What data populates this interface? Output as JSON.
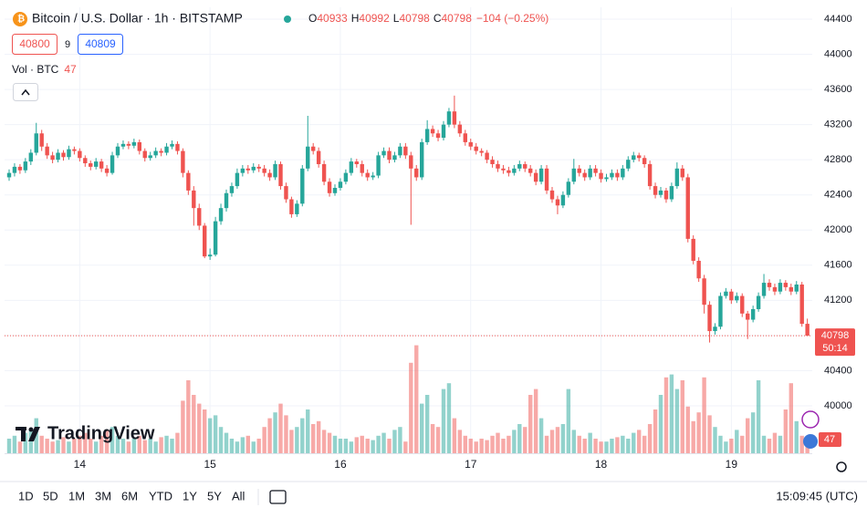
{
  "header": {
    "symbol": "Bitcoin / U.S. Dollar · 1h · BITSTAMP",
    "ohlc_labels": [
      "O",
      "H",
      "L",
      "C"
    ],
    "change": "−104 (−0.25%)",
    "bid": 40800,
    "spread": 9,
    "ask": 40809,
    "volume_label": "Vol · BTC",
    "countdown": "50:14",
    "logo": "TradingView"
  },
  "toolbar": {
    "ranges": [
      "1D",
      "5D",
      "1M",
      "3M",
      "6M",
      "YTD",
      "1Y",
      "5Y",
      "All"
    ],
    "clock": "15:09:45 (UTC)"
  },
  "chart_data": {
    "type": "candlestick",
    "up_color": "#26a69a",
    "down_color": "#ef5350",
    "grid": true,
    "ylim": [
      39460,
      44535
    ],
    "yticks": [
      40000,
      40400,
      40800,
      41200,
      41600,
      42000,
      42400,
      42800,
      43200,
      43600,
      44000,
      44400
    ],
    "xticks": [
      {
        "value": 13,
        "label": "14"
      },
      {
        "value": 37,
        "label": "15"
      },
      {
        "value": 61,
        "label": "16"
      },
      {
        "value": 85,
        "label": "17"
      },
      {
        "value": 109,
        "label": "18"
      },
      {
        "value": 133,
        "label": "19"
      }
    ],
    "volume_lim": [
      0,
      500
    ],
    "candles": [
      [
        42600,
        42690,
        42560,
        42650
      ],
      [
        42650,
        42760,
        42610,
        42720
      ],
      [
        42720,
        42750,
        42640,
        42680
      ],
      [
        42680,
        42820,
        42650,
        42780
      ],
      [
        42780,
        42920,
        42740,
        42880
      ],
      [
        42880,
        43220,
        42850,
        43100
      ],
      [
        43100,
        43140,
        42900,
        42950
      ],
      [
        42950,
        42990,
        42810,
        42850
      ],
      [
        42850,
        42890,
        42760,
        42800
      ],
      [
        42800,
        42920,
        42770,
        42880
      ],
      [
        42880,
        42910,
        42790,
        42830
      ],
      [
        42830,
        42960,
        42800,
        42920
      ],
      [
        42920,
        42950,
        42860,
        42900
      ],
      [
        42900,
        42930,
        42780,
        42820
      ],
      [
        42820,
        42850,
        42720,
        42760
      ],
      [
        42760,
        42790,
        42680,
        42720
      ],
      [
        42720,
        42820,
        42690,
        42780
      ],
      [
        42780,
        42810,
        42660,
        42700
      ],
      [
        42700,
        42740,
        42610,
        42650
      ],
      [
        42650,
        42890,
        42630,
        42850
      ],
      [
        42850,
        42990,
        42820,
        42950
      ],
      [
        42950,
        43020,
        42920,
        42980
      ],
      [
        42980,
        43010,
        42920,
        42960
      ],
      [
        42960,
        43040,
        42930,
        43000
      ],
      [
        43000,
        43030,
        42860,
        42900
      ],
      [
        42900,
        42930,
        42780,
        42820
      ],
      [
        42820,
        42890,
        42790,
        42850
      ],
      [
        42850,
        42940,
        42820,
        42900
      ],
      [
        42900,
        42930,
        42840,
        42880
      ],
      [
        42880,
        42990,
        42850,
        42950
      ],
      [
        42950,
        43020,
        42920,
        42980
      ],
      [
        42980,
        43010,
        42860,
        42900
      ],
      [
        42900,
        42930,
        42600,
        42650
      ],
      [
        42650,
        42680,
        42400,
        42450
      ],
      [
        42450,
        42500,
        42050,
        42250
      ],
      [
        42250,
        42300,
        42000,
        42050
      ],
      [
        42050,
        42080,
        41680,
        41700
      ],
      [
        41700,
        41790,
        41660,
        41720
      ],
      [
        41720,
        42150,
        41700,
        42100
      ],
      [
        42100,
        42300,
        42060,
        42250
      ],
      [
        42250,
        42460,
        42210,
        42420
      ],
      [
        42420,
        42540,
        42380,
        42500
      ],
      [
        42500,
        42700,
        42470,
        42650
      ],
      [
        42650,
        42740,
        42610,
        42700
      ],
      [
        42700,
        42740,
        42640,
        42680
      ],
      [
        42680,
        42760,
        42650,
        42720
      ],
      [
        42720,
        42750,
        42660,
        42700
      ],
      [
        42700,
        42740,
        42610,
        42650
      ],
      [
        42650,
        42690,
        42560,
        42600
      ],
      [
        42600,
        42790,
        42570,
        42750
      ],
      [
        42750,
        42780,
        42460,
        42500
      ],
      [
        42500,
        42540,
        42310,
        42350
      ],
      [
        42350,
        42380,
        42140,
        42180
      ],
      [
        42180,
        42340,
        42150,
        42300
      ],
      [
        42300,
        42740,
        42270,
        42700
      ],
      [
        42700,
        43300,
        42670,
        42950
      ],
      [
        42950,
        42990,
        42860,
        42900
      ],
      [
        42900,
        42940,
        42710,
        42750
      ],
      [
        42750,
        42790,
        42510,
        42550
      ],
      [
        42550,
        42590,
        42380,
        42420
      ],
      [
        42420,
        42520,
        42390,
        42480
      ],
      [
        42480,
        42590,
        42450,
        42550
      ],
      [
        42550,
        42690,
        42520,
        42650
      ],
      [
        42650,
        42820,
        42620,
        42780
      ],
      [
        42780,
        42810,
        42710,
        42750
      ],
      [
        42750,
        42790,
        42610,
        42650
      ],
      [
        42650,
        42690,
        42560,
        42600
      ],
      [
        42600,
        42660,
        42570,
        42620
      ],
      [
        42620,
        42890,
        42590,
        42850
      ],
      [
        42850,
        42940,
        42820,
        42900
      ],
      [
        42900,
        42940,
        42760,
        42800
      ],
      [
        42800,
        42890,
        42770,
        42850
      ],
      [
        42850,
        42990,
        42820,
        42950
      ],
      [
        42950,
        42990,
        42810,
        42850
      ],
      [
        42850,
        42890,
        42060,
        42700
      ],
      [
        42700,
        42740,
        42560,
        42600
      ],
      [
        42600,
        43040,
        42570,
        43000
      ],
      [
        43000,
        43250,
        42970,
        43150
      ],
      [
        43150,
        43190,
        43060,
        43100
      ],
      [
        43100,
        43140,
        43010,
        43050
      ],
      [
        43050,
        43240,
        43020,
        43200
      ],
      [
        43200,
        43390,
        43170,
        43350
      ],
      [
        43350,
        43530,
        43160,
        43200
      ],
      [
        43200,
        43240,
        43060,
        43100
      ],
      [
        43100,
        43140,
        42960,
        43000
      ],
      [
        43000,
        43040,
        42910,
        42950
      ],
      [
        42950,
        42990,
        42860,
        42900
      ],
      [
        42900,
        42930,
        42840,
        42880
      ],
      [
        42880,
        42910,
        42760,
        42800
      ],
      [
        42800,
        42840,
        42710,
        42750
      ],
      [
        42750,
        42790,
        42660,
        42700
      ],
      [
        42700,
        42740,
        42640,
        42680
      ],
      [
        42680,
        42720,
        42610,
        42650
      ],
      [
        42650,
        42740,
        42620,
        42700
      ],
      [
        42700,
        42790,
        42670,
        42750
      ],
      [
        42750,
        42780,
        42660,
        42700
      ],
      [
        42700,
        42740,
        42610,
        42650
      ],
      [
        42650,
        42690,
        42510,
        42550
      ],
      [
        42550,
        42740,
        42520,
        42700
      ],
      [
        42700,
        42740,
        42410,
        42450
      ],
      [
        42450,
        42490,
        42310,
        42350
      ],
      [
        42350,
        42390,
        42180,
        42280
      ],
      [
        42280,
        42440,
        42250,
        42400
      ],
      [
        42400,
        42590,
        42370,
        42550
      ],
      [
        42550,
        42810,
        42520,
        42700
      ],
      [
        42700,
        42740,
        42610,
        42650
      ],
      [
        42650,
        42690,
        42560,
        42600
      ],
      [
        42600,
        42740,
        42570,
        42700
      ],
      [
        42700,
        42740,
        42610,
        42650
      ],
      [
        42650,
        42690,
        42540,
        42580
      ],
      [
        42580,
        42640,
        42550,
        42600
      ],
      [
        42600,
        42690,
        42570,
        42650
      ],
      [
        42650,
        42690,
        42560,
        42600
      ],
      [
        42600,
        42740,
        42570,
        42700
      ],
      [
        42700,
        42840,
        42670,
        42800
      ],
      [
        42800,
        42890,
        42770,
        42850
      ],
      [
        42850,
        42880,
        42780,
        42820
      ],
      [
        42820,
        42850,
        42710,
        42750
      ],
      [
        42750,
        42790,
        42460,
        42500
      ],
      [
        42500,
        42540,
        42360,
        42400
      ],
      [
        42400,
        42490,
        42370,
        42450
      ],
      [
        42450,
        42480,
        42310,
        42350
      ],
      [
        42350,
        42540,
        42320,
        42500
      ],
      [
        42500,
        42770,
        42470,
        42700
      ],
      [
        42700,
        42740,
        42560,
        42600
      ],
      [
        42600,
        42640,
        41860,
        41900
      ],
      [
        41900,
        41940,
        41610,
        41650
      ],
      [
        41650,
        41690,
        41410,
        41450
      ],
      [
        41450,
        41490,
        41050,
        41150
      ],
      [
        41150,
        41190,
        40720,
        40850
      ],
      [
        40850,
        40940,
        40810,
        40900
      ],
      [
        40900,
        41290,
        40870,
        41250
      ],
      [
        41250,
        41340,
        41220,
        41300
      ],
      [
        41300,
        41330,
        41160,
        41200
      ],
      [
        41200,
        41290,
        41170,
        41250
      ],
      [
        41250,
        41280,
        41010,
        41050
      ],
      [
        41050,
        41080,
        40760,
        40980
      ],
      [
        40980,
        41140,
        40950,
        41100
      ],
      [
        41100,
        41290,
        41070,
        41250
      ],
      [
        41250,
        41500,
        41220,
        41400
      ],
      [
        41400,
        41440,
        41310,
        41350
      ],
      [
        41350,
        41390,
        41260,
        41300
      ],
      [
        41300,
        41440,
        41270,
        41400
      ],
      [
        41400,
        41430,
        41310,
        41350
      ],
      [
        41350,
        41390,
        41260,
        41300
      ],
      [
        41300,
        41420,
        41270,
        41380
      ],
      [
        41380,
        41410,
        40900,
        40933
      ],
      [
        40933,
        40992,
        40798,
        40798
      ]
    ],
    "volume": [
      50,
      60,
      40,
      70,
      80,
      120,
      60,
      50,
      40,
      45,
      55,
      40,
      50,
      60,
      70,
      50,
      40,
      60,
      80,
      90,
      60,
      50,
      40,
      50,
      60,
      45,
      50,
      40,
      55,
      60,
      50,
      70,
      180,
      250,
      200,
      170,
      150,
      120,
      130,
      90,
      70,
      50,
      40,
      55,
      60,
      40,
      50,
      90,
      120,
      140,
      170,
      130,
      80,
      90,
      120,
      150,
      100,
      110,
      80,
      70,
      60,
      50,
      50,
      40,
      55,
      60,
      50,
      45,
      60,
      70,
      50,
      80,
      90,
      40,
      310,
      370,
      170,
      200,
      100,
      90,
      220,
      240,
      120,
      80,
      60,
      50,
      40,
      50,
      45,
      60,
      70,
      50,
      60,
      80,
      100,
      90,
      200,
      220,
      120,
      60,
      80,
      90,
      100,
      220,
      80,
      60,
      50,
      70,
      50,
      40,
      40,
      50,
      55,
      60,
      50,
      70,
      80,
      60,
      100,
      150,
      200,
      260,
      270,
      220,
      250,
      160,
      110,
      140,
      260,
      130,
      90,
      60,
      40,
      50,
      80,
      60,
      120,
      140,
      250,
      60,
      50,
      70,
      60,
      150,
      240,
      110,
      60,
      47
    ]
  }
}
